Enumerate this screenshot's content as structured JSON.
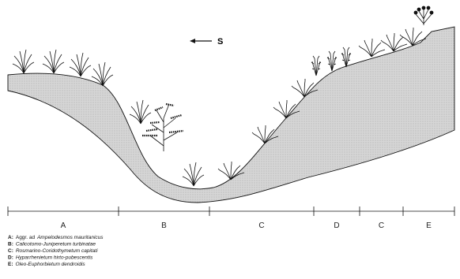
{
  "direction": {
    "label": "S"
  },
  "segments": [
    "A",
    "B",
    "C",
    "D",
    "C",
    "E"
  ],
  "legend": [
    {
      "letter": "A:",
      "prefix": "Aggr. ad",
      "name": "Ampelodesmos mauritanicus"
    },
    {
      "letter": "B:",
      "prefix": "",
      "name": "Calicotomo-Juniperetum turbinatae"
    },
    {
      "letter": "C:",
      "prefix": "",
      "name": "Rosmarino-Coridothymetum capitati"
    },
    {
      "letter": "D:",
      "prefix": "",
      "name": "Hyparrhenietum hirto-pubescentis"
    },
    {
      "letter": "E:",
      "prefix": "",
      "name": "Oleo-Euphorbietum dendroidis"
    }
  ]
}
